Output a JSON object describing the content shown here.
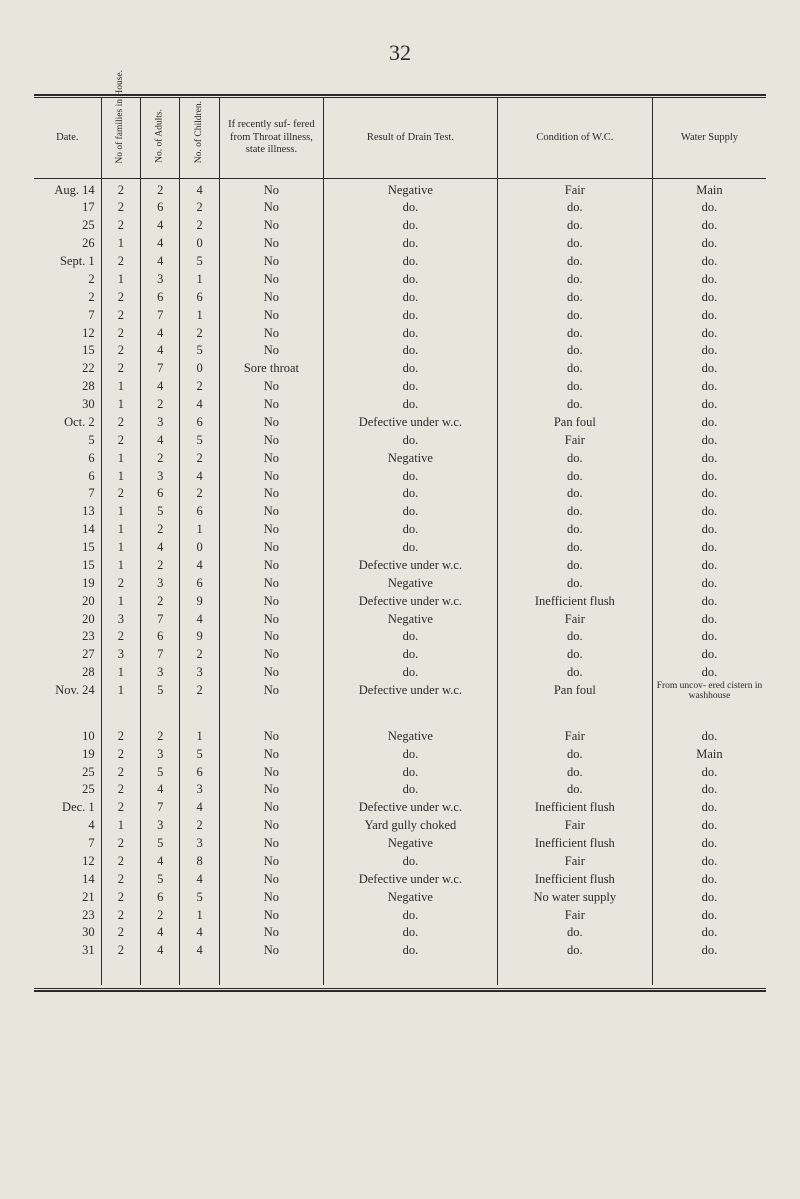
{
  "page_number": "32",
  "columns": [
    "Date.",
    "No of families in House.",
    "No. of Adults.",
    "No. of Children.",
    "If recently suf- fered from Throat illness, state illness.",
    "Result of Drain Test.",
    "Condition of W.C.",
    "Water Supply"
  ],
  "col_widths": [
    "58px",
    "34px",
    "34px",
    "34px",
    "90px",
    "150px",
    "134px",
    "98px"
  ],
  "rows": [
    [
      "Aug. 14",
      "2",
      "2",
      "4",
      "No",
      "Negative",
      "Fair",
      "Main"
    ],
    [
      "17",
      "2",
      "6",
      "2",
      "No",
      "do.",
      "do.",
      "do."
    ],
    [
      "25",
      "2",
      "4",
      "2",
      "No",
      "do.",
      "do.",
      "do."
    ],
    [
      "26",
      "1",
      "4",
      "0",
      "No",
      "do.",
      "do.",
      "do."
    ],
    [
      "Sept. 1",
      "2",
      "4",
      "5",
      "No",
      "do.",
      "do.",
      "do."
    ],
    [
      "2",
      "1",
      "3",
      "1",
      "No",
      "do.",
      "do.",
      "do."
    ],
    [
      "2",
      "2",
      "6",
      "6",
      "No",
      "do.",
      "do.",
      "do."
    ],
    [
      "7",
      "2",
      "7",
      "1",
      "No",
      "do.",
      "do.",
      "do."
    ],
    [
      "12",
      "2",
      "4",
      "2",
      "No",
      "do.",
      "do.",
      "do."
    ],
    [
      "15",
      "2",
      "4",
      "5",
      "No",
      "do.",
      "do.",
      "do."
    ],
    [
      "22",
      "2",
      "7",
      "0",
      "Sore throat",
      "do.",
      "do.",
      "do."
    ],
    [
      "28",
      "1",
      "4",
      "2",
      "No",
      "do.",
      "do.",
      "do."
    ],
    [
      "30",
      "1",
      "2",
      "4",
      "No",
      "do.",
      "do.",
      "do."
    ],
    [
      "Oct. 2",
      "2",
      "3",
      "6",
      "No",
      "Defective under w.c.",
      "Pan foul",
      "do."
    ],
    [
      "5",
      "2",
      "4",
      "5",
      "No",
      "do.",
      "Fair",
      "do."
    ],
    [
      "6",
      "1",
      "2",
      "2",
      "No",
      "Negative",
      "do.",
      "do."
    ],
    [
      "6",
      "1",
      "3",
      "4",
      "No",
      "do.",
      "do.",
      "do."
    ],
    [
      "7",
      "2",
      "6",
      "2",
      "No",
      "do.",
      "do.",
      "do."
    ],
    [
      "13",
      "1",
      "5",
      "6",
      "No",
      "do.",
      "do.",
      "do."
    ],
    [
      "14",
      "1",
      "2",
      "1",
      "No",
      "do.",
      "do.",
      "do."
    ],
    [
      "15",
      "1",
      "4",
      "0",
      "No",
      "do.",
      "do.",
      "do."
    ],
    [
      "15",
      "1",
      "2",
      "4",
      "No",
      "Defective under w.c.",
      "do.",
      "do."
    ],
    [
      "19",
      "2",
      "3",
      "6",
      "No",
      "Negative",
      "do.",
      "do."
    ],
    [
      "20",
      "1",
      "2",
      "9",
      "No",
      "Defective under w.c.",
      "Inefficient flush",
      "do."
    ],
    [
      "20",
      "3",
      "7",
      "4",
      "No",
      "Negative",
      "Fair",
      "do."
    ],
    [
      "23",
      "2",
      "6",
      "9",
      "No",
      "do.",
      "do.",
      "do."
    ],
    [
      "27",
      "3",
      "7",
      "2",
      "No",
      "do.",
      "do.",
      "do."
    ],
    [
      "28",
      "1",
      "3",
      "3",
      "No",
      "do.",
      "do.",
      "do."
    ],
    [
      "Nov. 24",
      "1",
      "5",
      "2",
      "No",
      "Defective under w.c.",
      "Pan foul",
      "From uncov- ered cistern in washhouse"
    ]
  ],
  "rows2": [
    [
      "10",
      "2",
      "2",
      "1",
      "No",
      "Negative",
      "Fair",
      "do."
    ],
    [
      "19",
      "2",
      "3",
      "5",
      "No",
      "do.",
      "do.",
      "Main"
    ],
    [
      "25",
      "2",
      "5",
      "6",
      "No",
      "do.",
      "do.",
      "do."
    ],
    [
      "25",
      "2",
      "4",
      "3",
      "No",
      "do.",
      "do.",
      "do."
    ],
    [
      "Dec. 1",
      "2",
      "7",
      "4",
      "No",
      "Defective under w.c.",
      "Inefficient flush",
      "do."
    ],
    [
      "4",
      "1",
      "3",
      "2",
      "No",
      "Yard gully choked",
      "Fair",
      "do."
    ],
    [
      "7",
      "2",
      "5",
      "3",
      "No",
      "Negative",
      "Inefficient flush",
      "do."
    ],
    [
      "12",
      "2",
      "4",
      "8",
      "No",
      "do.",
      "Fair",
      "do."
    ],
    [
      "14",
      "2",
      "5",
      "4",
      "No",
      "Defective under w.c.",
      "Inefficient flush",
      "do."
    ],
    [
      "21",
      "2",
      "6",
      "5",
      "No",
      "Negative",
      "No water supply",
      "do."
    ],
    [
      "23",
      "2",
      "2",
      "1",
      "No",
      "do.",
      "Fair",
      "do."
    ],
    [
      "30",
      "2",
      "4",
      "4",
      "No",
      "do.",
      "do.",
      "do."
    ],
    [
      "31",
      "2",
      "4",
      "4",
      "No",
      "do.",
      "do.",
      "do."
    ]
  ]
}
